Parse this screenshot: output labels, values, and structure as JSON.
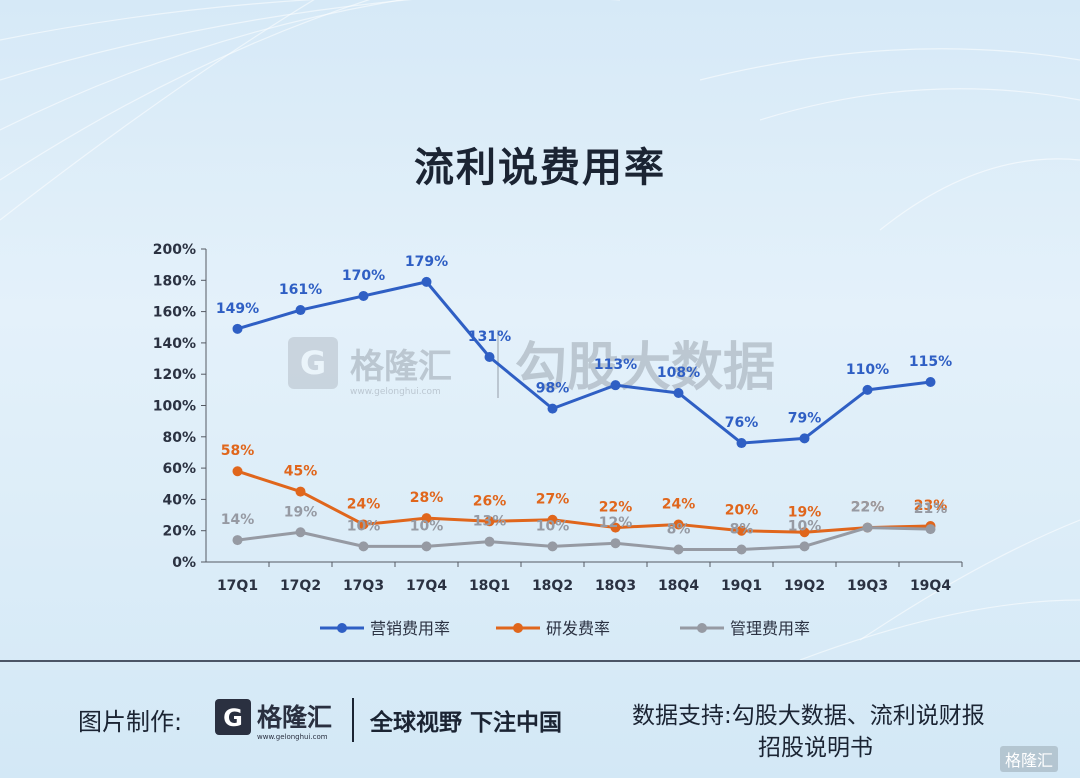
{
  "title": "流利说费用率",
  "chart_data": {
    "type": "line",
    "categories": [
      "17Q1",
      "17Q2",
      "17Q3",
      "17Q4",
      "18Q1",
      "18Q2",
      "18Q3",
      "18Q4",
      "19Q1",
      "19Q2",
      "19Q3",
      "19Q4"
    ],
    "ylim": [
      0,
      200
    ],
    "yticks": [
      "0%",
      "20%",
      "40%",
      "60%",
      "80%",
      "100%",
      "120%",
      "140%",
      "160%",
      "180%",
      "200%"
    ],
    "grid": false,
    "legend_position": "bottom",
    "series": [
      {
        "name": "营销费用率",
        "color": "#2f5fc4",
        "values": [
          149,
          161,
          170,
          179,
          131,
          98,
          113,
          108,
          76,
          79,
          110,
          115
        ],
        "labels": [
          "149%",
          "161%",
          "170%",
          "179%",
          "131%",
          "98%",
          "113%",
          "108%",
          "76%",
          "79%",
          "110%",
          "115%"
        ]
      },
      {
        "name": "研发费率",
        "color": "#e0661c",
        "values": [
          58,
          45,
          24,
          28,
          26,
          27,
          22,
          24,
          20,
          19,
          22,
          23
        ],
        "labels": [
          "58%",
          "45%",
          "24%",
          "28%",
          "26%",
          "27%",
          "22%",
          "24%",
          "20%",
          "19%",
          "22%",
          "23%"
        ]
      },
      {
        "name": "管理费用率",
        "color": "#969aa3",
        "values": [
          14,
          19,
          10,
          10,
          13,
          10,
          12,
          8,
          8,
          10,
          22,
          21
        ],
        "labels": [
          "14%",
          "19%",
          "10%",
          "10%",
          "13%",
          "10%",
          "12%",
          "8%",
          "8%",
          "10%",
          "22%",
          "21%"
        ]
      }
    ]
  },
  "watermark": {
    "brand": "格隆汇",
    "url": "www.gelonghui.com",
    "product": "勾股大数据"
  },
  "footer": {
    "made_by_label": "图片制作:",
    "brand_name": "格隆汇",
    "brand_url": "www.gelonghui.com",
    "slogan": "全球视野 下注中国",
    "source_line1": "数据支持:勾股大数据、流利说财报",
    "source_line2": "招股说明书"
  },
  "corner_logo": "格隆汇",
  "colors": {
    "text": "#1b2433",
    "brand_dark": "#2a3040"
  }
}
